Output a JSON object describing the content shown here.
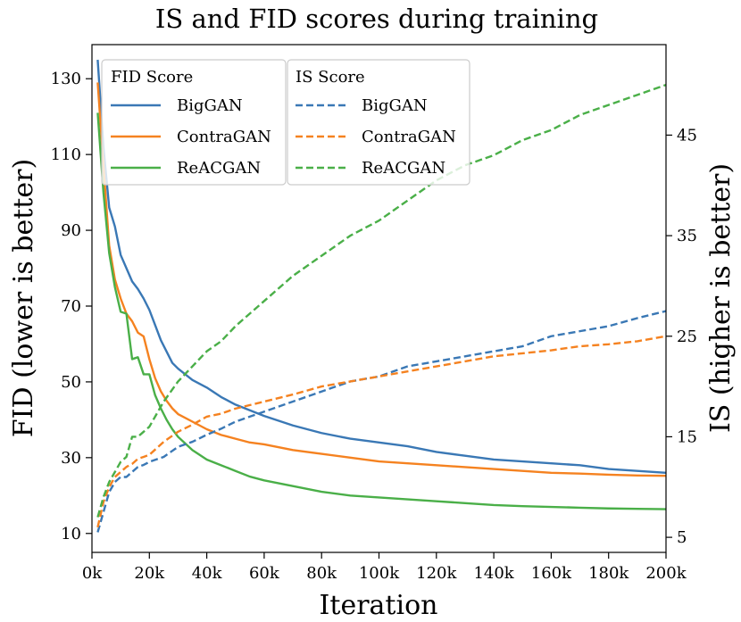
{
  "chart_data": {
    "type": "line",
    "title": "IS and FID scores during training",
    "xlabel": "Iteration",
    "ylabel_left": "FID (lower is better)",
    "ylabel_right": "IS (higher is better)",
    "xlim": [
      0,
      200000
    ],
    "ylim_left": [
      5,
      139
    ],
    "ylim_right": [
      3.5,
      54
    ],
    "x_ticks": [
      0,
      20000,
      40000,
      60000,
      80000,
      100000,
      120000,
      140000,
      160000,
      180000,
      200000
    ],
    "x_tick_labels": [
      "0k",
      "20k",
      "40k",
      "60k",
      "80k",
      "100k",
      "120k",
      "140k",
      "160k",
      "180k",
      "200k"
    ],
    "y_left_ticks": [
      10,
      30,
      50,
      70,
      90,
      110,
      130
    ],
    "y_left_tick_labels": [
      "10",
      "30",
      "50",
      "70",
      "90",
      "110",
      "130"
    ],
    "y_right_ticks": [
      5,
      15,
      25,
      35,
      45
    ],
    "y_right_tick_labels": [
      "5",
      "15",
      "25",
      "35",
      "45"
    ],
    "grid": false,
    "legend_fid": {
      "title": "FID Score",
      "placement": "top-left",
      "entries": [
        "BigGAN",
        "ContraGAN",
        "ReACGAN"
      ]
    },
    "legend_is": {
      "title": "IS Score",
      "placement": "top-center",
      "entries": [
        "BigGAN",
        "ContraGAN",
        "ReACGAN"
      ]
    },
    "fid_series": [
      {
        "name": "BigGAN",
        "color": "#3a78b5",
        "x": [
          2000,
          4000,
          6000,
          8000,
          10000,
          12000,
          14000,
          16000,
          18000,
          20000,
          22000,
          24000,
          26000,
          28000,
          30000,
          35000,
          40000,
          45000,
          50000,
          55000,
          60000,
          70000,
          80000,
          90000,
          100000,
          110000,
          120000,
          130000,
          140000,
          150000,
          160000,
          170000,
          180000,
          190000,
          200000
        ],
        "values": [
          135,
          112,
          96,
          91,
          83.5,
          80,
          76.5,
          74.5,
          72,
          69,
          65,
          61,
          58,
          55,
          53.5,
          50.5,
          48.5,
          46,
          44,
          42.5,
          41,
          38.5,
          36.5,
          35,
          34,
          33,
          31.5,
          30.5,
          29.5,
          29,
          28.5,
          28,
          27,
          26.5,
          26
        ]
      },
      {
        "name": "ContraGAN",
        "color": "#f58220",
        "x": [
          2000,
          4000,
          6000,
          8000,
          10000,
          12000,
          14000,
          16000,
          18000,
          20000,
          22000,
          24000,
          26000,
          28000,
          30000,
          35000,
          40000,
          45000,
          50000,
          55000,
          60000,
          70000,
          80000,
          90000,
          100000,
          110000,
          120000,
          130000,
          140000,
          150000,
          160000,
          170000,
          180000,
          190000,
          200000
        ],
        "values": [
          129,
          107,
          86,
          77,
          72,
          68,
          66,
          63,
          62,
          56,
          51,
          47.5,
          45,
          43,
          41.5,
          39.5,
          37.5,
          36,
          35,
          34,
          33.5,
          32,
          31,
          30,
          29,
          28.5,
          28,
          27.5,
          27,
          26.5,
          26,
          25.8,
          25.5,
          25.3,
          25.2
        ]
      },
      {
        "name": "ReACGAN",
        "color": "#4aaf48",
        "x": [
          2000,
          4000,
          6000,
          8000,
          10000,
          12000,
          14000,
          16000,
          18000,
          20000,
          22000,
          24000,
          26000,
          28000,
          30000,
          35000,
          40000,
          45000,
          50000,
          55000,
          60000,
          70000,
          80000,
          90000,
          100000,
          110000,
          120000,
          130000,
          140000,
          150000,
          160000,
          170000,
          180000,
          190000,
          200000
        ],
        "values": [
          121,
          100,
          84,
          75,
          68.5,
          68,
          56,
          56.5,
          52,
          52,
          46.5,
          43,
          40,
          37.5,
          35.5,
          32,
          29.5,
          28,
          26.5,
          25,
          24,
          22.5,
          21,
          20,
          19.5,
          19,
          18.5,
          18,
          17.5,
          17.2,
          17,
          16.8,
          16.6,
          16.5,
          16.4
        ]
      }
    ],
    "is_series": [
      {
        "name": "BigGAN",
        "color": "#3a78b5",
        "x": [
          2000,
          4000,
          6000,
          8000,
          10000,
          12000,
          14000,
          16000,
          18000,
          20000,
          25000,
          30000,
          35000,
          40000,
          45000,
          50000,
          60000,
          70000,
          80000,
          90000,
          100000,
          110000,
          120000,
          130000,
          140000,
          150000,
          160000,
          170000,
          180000,
          190000,
          200000
        ],
        "values": [
          5.5,
          7.5,
          9.5,
          10.5,
          11,
          11,
          11.5,
          12,
          12.2,
          12.5,
          13,
          14,
          14.5,
          15.2,
          15.8,
          16.5,
          17.5,
          18.5,
          19.5,
          20.5,
          21,
          22,
          22.5,
          23,
          23.5,
          24,
          25,
          25.5,
          26,
          26.8,
          27.5
        ]
      },
      {
        "name": "ContraGAN",
        "color": "#f58220",
        "x": [
          2000,
          4000,
          6000,
          8000,
          10000,
          12000,
          14000,
          16000,
          18000,
          20000,
          25000,
          30000,
          35000,
          40000,
          45000,
          50000,
          60000,
          70000,
          80000,
          90000,
          100000,
          110000,
          120000,
          130000,
          140000,
          150000,
          160000,
          170000,
          180000,
          190000,
          200000
        ],
        "values": [
          6,
          8.5,
          10,
          11,
          11.5,
          12,
          12.3,
          12.8,
          13,
          13.2,
          14.5,
          15.5,
          16.2,
          17,
          17.3,
          17.8,
          18.5,
          19.2,
          20,
          20.5,
          21,
          21.5,
          22,
          22.5,
          23,
          23.3,
          23.6,
          24,
          24.2,
          24.5,
          25
        ]
      },
      {
        "name": "ReACGAN",
        "color": "#4aaf48",
        "x": [
          2000,
          4000,
          6000,
          8000,
          10000,
          12000,
          14000,
          16000,
          18000,
          20000,
          25000,
          30000,
          35000,
          40000,
          45000,
          50000,
          60000,
          70000,
          80000,
          90000,
          100000,
          110000,
          120000,
          130000,
          140000,
          150000,
          160000,
          170000,
          180000,
          190000,
          200000
        ],
        "values": [
          7,
          9,
          10.5,
          11.5,
          12.5,
          13,
          15,
          15,
          15.5,
          16,
          18.5,
          20.5,
          22,
          23.5,
          24.5,
          26,
          28.5,
          31,
          33,
          35,
          36.5,
          38.5,
          40.5,
          42,
          43,
          44.5,
          45.5,
          47,
          48,
          49,
          50
        ]
      }
    ]
  }
}
